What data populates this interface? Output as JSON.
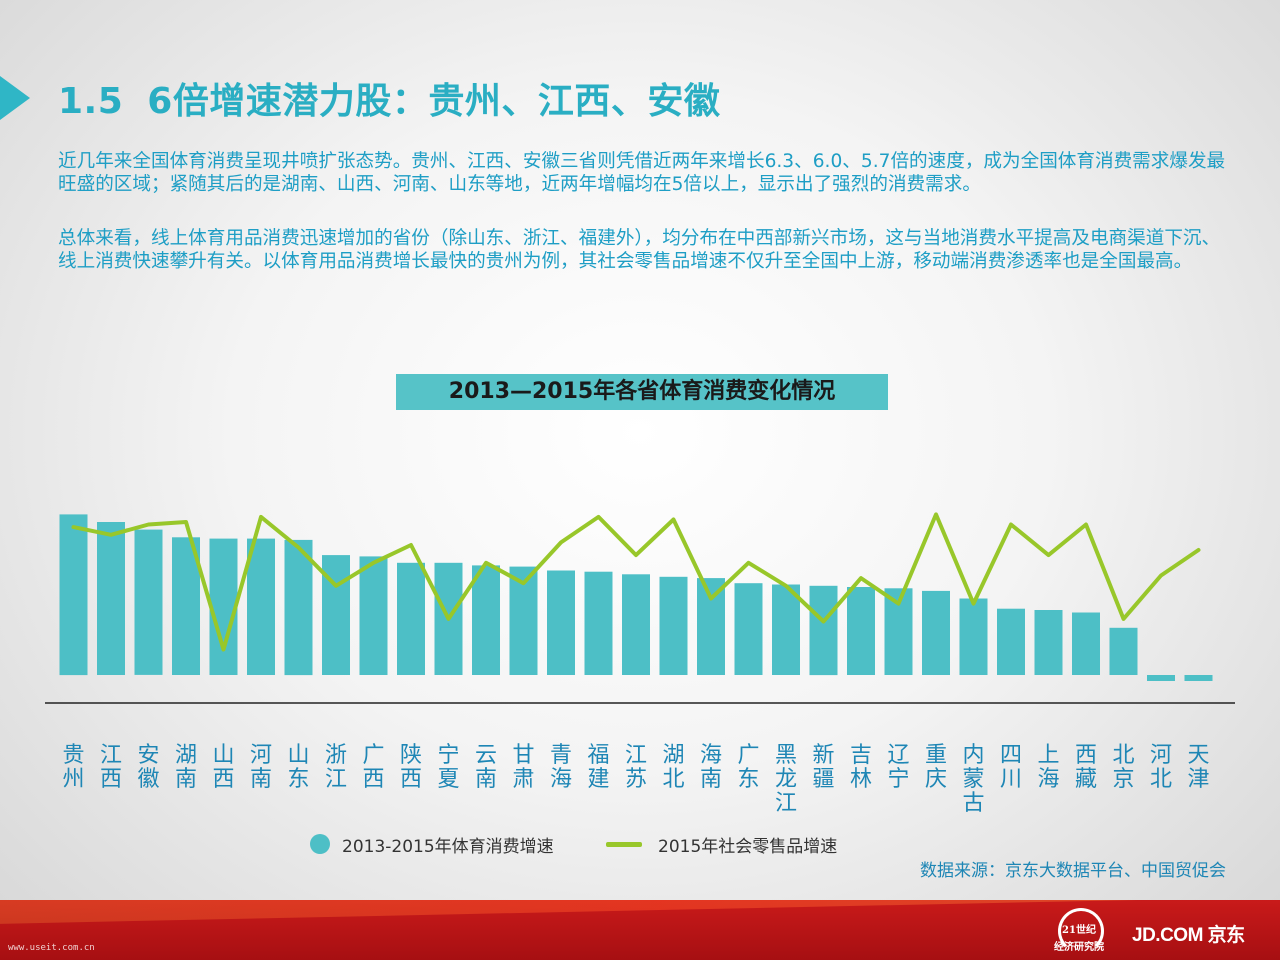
{
  "heading": {
    "number": "1.5",
    "text": "6倍增速潜力股：贵州、江西、安徽"
  },
  "paragraphs": [
    "近几年来全国体育消费呈现井喷扩张态势。贵州、江西、安徽三省则凭借近两年来增长6.3、6.0、5.7倍的速度，成为全国体育消费需求爆发最旺盛的区域；紧随其后的是湖南、山西、河南、山东等地，近两年增幅均在5倍以上，显示出了强烈的消费需求。",
    "总体来看，线上体育用品消费迅速增加的省份（除山东、浙江、福建外），均分布在中西部新兴市场，这与当地消费水平提高及电商渠道下沉、线上消费快速攀升有关。以体育用品消费增长最快的贵州为例，其社会零售品增速不仅升至全国中上游，移动端消费渗透率也是全国最高。"
  ],
  "chart_data": {
    "type": "bar",
    "title": "2013—2015年各省体育消费变化情况",
    "categories": [
      "贵州",
      "江西",
      "安徽",
      "湖南",
      "山西",
      "河南",
      "山东",
      "浙江",
      "广西",
      "陕西",
      "宁夏",
      "云南",
      "甘肃",
      "青海",
      "福建",
      "江苏",
      "湖北",
      "海南",
      "广东",
      "黑龙江",
      "新疆",
      "吉林",
      "辽宁",
      "重庆",
      "内蒙古",
      "四川",
      "上海",
      "西藏",
      "北京",
      "河北",
      "天津"
    ],
    "series": [
      {
        "name": "2013-2015年体育消费增速",
        "type": "bar",
        "color": "#4dbfc6",
        "values": [
          6.3,
          6.0,
          5.7,
          5.4,
          5.35,
          5.35,
          5.3,
          4.7,
          4.65,
          4.4,
          4.4,
          4.3,
          4.25,
          4.1,
          4.05,
          3.95,
          3.85,
          3.8,
          3.6,
          3.55,
          3.5,
          3.45,
          3.4,
          3.3,
          3.0,
          2.6,
          2.55,
          2.45,
          1.85,
          -0.2,
          -0.2
        ]
      },
      {
        "name": "2015年社会零售品增速",
        "type": "line",
        "color": "#98c72a",
        "values": [
          5.8,
          5.5,
          5.9,
          6.0,
          1.0,
          6.2,
          5.0,
          3.5,
          4.4,
          5.1,
          2.2,
          4.4,
          3.6,
          5.2,
          6.2,
          4.7,
          6.1,
          3.0,
          4.4,
          3.5,
          2.1,
          3.8,
          2.8,
          6.3,
          2.8,
          5.9,
          4.7,
          5.9,
          2.2,
          3.9,
          4.9
        ]
      }
    ],
    "legend": "bottom",
    "grid": false
  },
  "source": "数据来源：京东大数据平台、中国贸促会",
  "footer": {
    "watermark": "www.useit.com.cn",
    "logo_21_line1": "21世纪",
    "logo_21_line2": "经济研究院",
    "logo_jd": "JD.COM 京东"
  }
}
